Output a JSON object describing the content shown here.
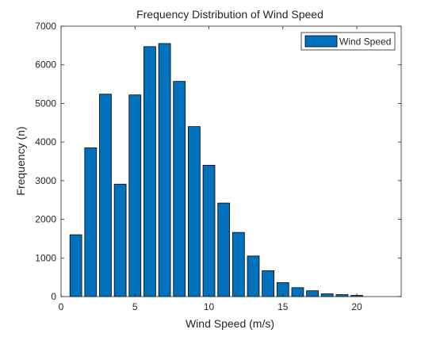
{
  "chart_data": {
    "type": "bar",
    "title": "Frequency Distribution of Wind Speed",
    "xlabel": "Wind Speed (m/s)",
    "ylabel": "Frequency (n)",
    "xlim": [
      0,
      23
    ],
    "ylim": [
      0,
      7000
    ],
    "x_ticks": [
      0,
      5,
      10,
      15,
      20
    ],
    "y_ticks": [
      0,
      1000,
      2000,
      3000,
      4000,
      5000,
      6000,
      7000
    ],
    "grid": false,
    "legend_position": "top-right",
    "bar_color": "#0072BD",
    "series": [
      {
        "name": "Wind Speed",
        "x": [
          1,
          2,
          3,
          4,
          5,
          6,
          7,
          8,
          9,
          10,
          11,
          12,
          13,
          14,
          15,
          16,
          17,
          18,
          19,
          20,
          21
        ],
        "values": [
          1600,
          3850,
          5240,
          2910,
          5220,
          6470,
          6550,
          5570,
          4400,
          3400,
          2420,
          1660,
          1050,
          670,
          360,
          230,
          150,
          70,
          50,
          30,
          0
        ]
      }
    ]
  }
}
